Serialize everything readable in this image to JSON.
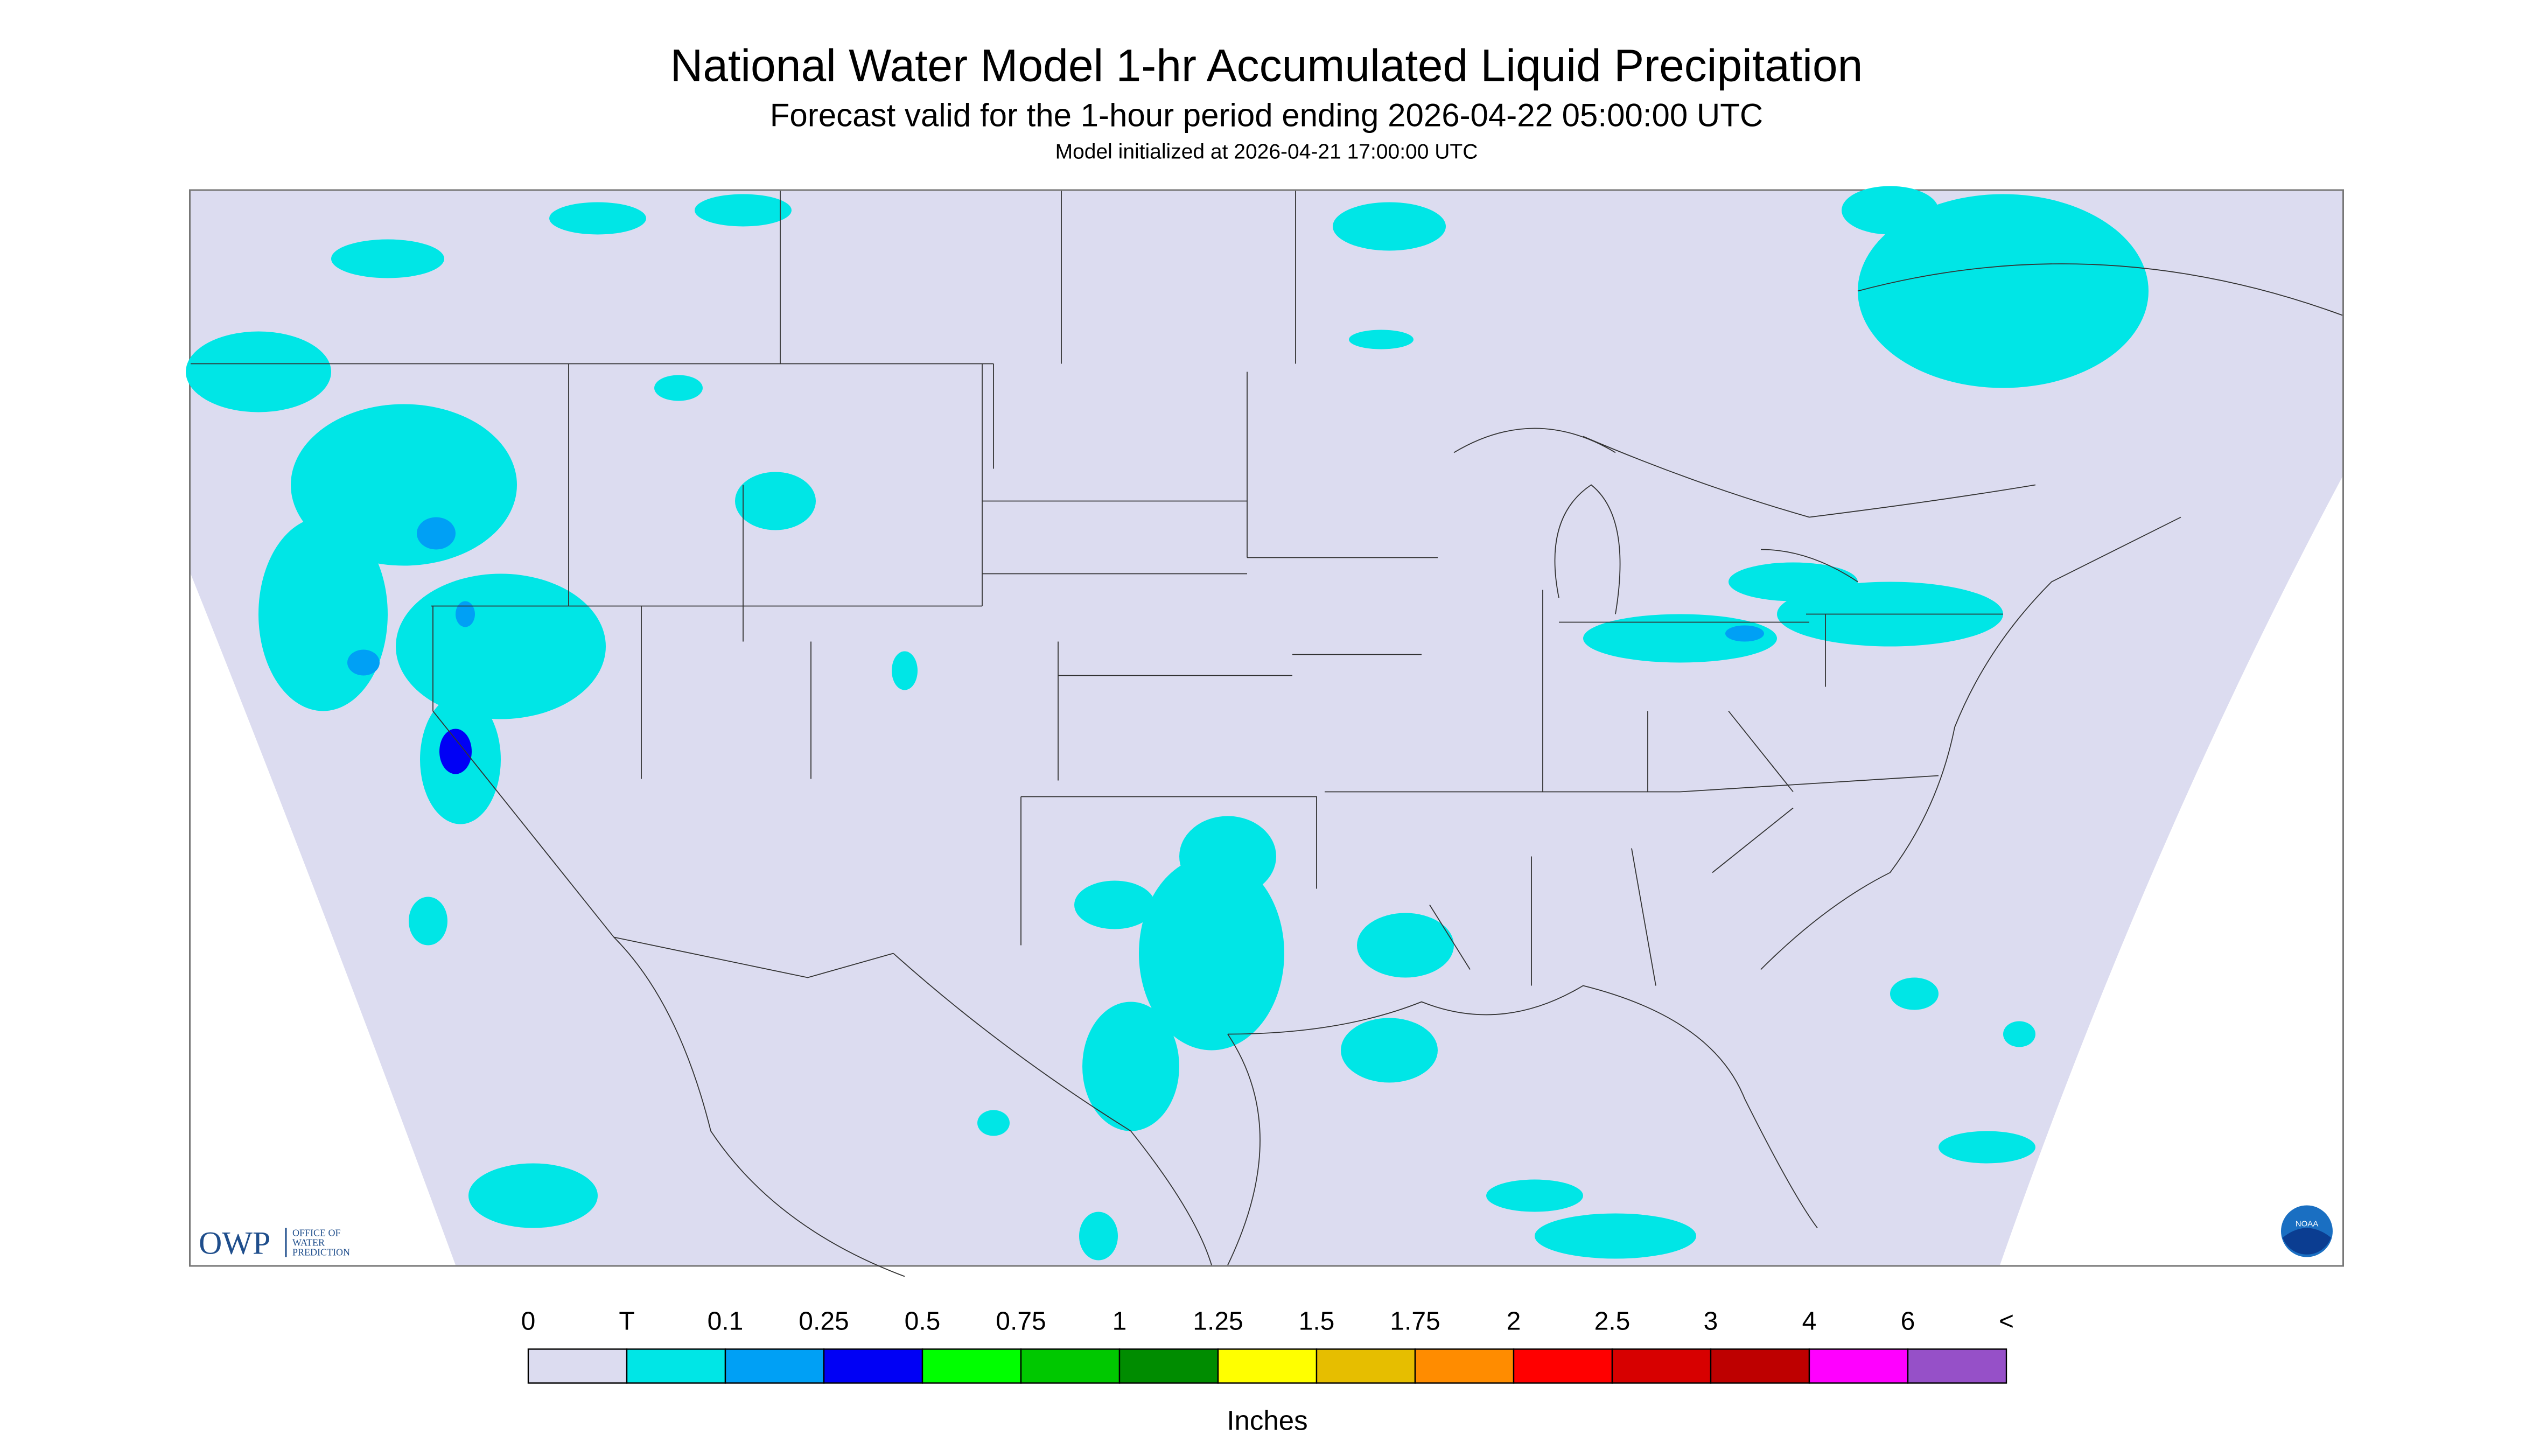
{
  "header": {
    "title": "National Water Model 1-hr Accumulated Liquid Precipitation",
    "subtitle": "Forecast valid for the 1-hour period ending 2026-04-22 05:00:00 UTC",
    "init": "Model initialized at 2026-04-21 17:00:00 UTC"
  },
  "logo": {
    "name": "OWP",
    "lines": [
      "OFFICE OF",
      "WATER",
      "PREDICTION"
    ],
    "badge": "NOAA"
  },
  "legend": {
    "labels": [
      "0",
      "T",
      "0.1",
      "0.25",
      "0.5",
      "0.75",
      "1",
      "1.25",
      "1.5",
      "1.75",
      "2",
      "2.5",
      "3",
      "4",
      "6",
      "<"
    ],
    "colors": [
      "#dcdcf0",
      "#00e6e6",
      "#00a0f5",
      "#0000f5",
      "#00ff00",
      "#00c800",
      "#008c00",
      "#ffff00",
      "#e6be00",
      "#ff8c00",
      "#ff0000",
      "#d70000",
      "#be0000",
      "#ff00ff",
      "#9650c8"
    ],
    "units": "Inches"
  }
}
